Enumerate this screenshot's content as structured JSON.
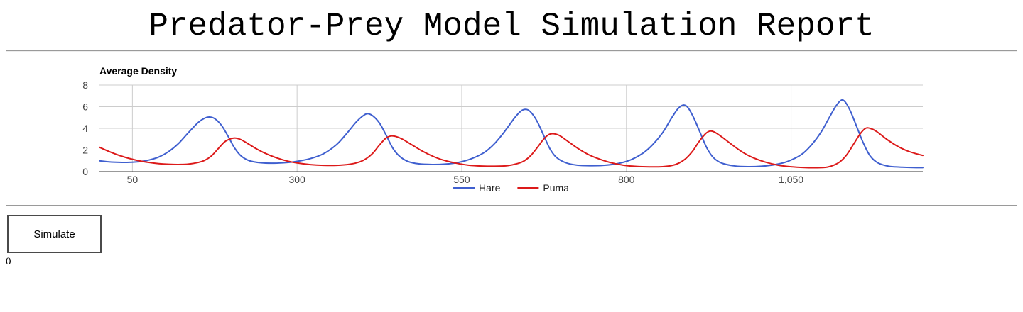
{
  "page": {
    "title": "Predator-Prey Model Simulation Report"
  },
  "controls": {
    "simulate_label": "Simulate",
    "counter_value": "0"
  },
  "chart_data": {
    "type": "line",
    "title": "Average Density",
    "xlabel": "",
    "ylabel": "",
    "xlim": [
      0,
      1250
    ],
    "ylim": [
      0,
      8
    ],
    "x_ticks": [
      50,
      300,
      550,
      800,
      1050
    ],
    "x_tick_labels": [
      "50",
      "300",
      "550",
      "800",
      "1,050"
    ],
    "y_ticks": [
      0,
      2,
      4,
      6,
      8
    ],
    "y_tick_labels": [
      "0",
      "2",
      "4",
      "6",
      "8"
    ],
    "grid": true,
    "legend_position": "bottom",
    "series": [
      {
        "name": "Hare",
        "color": "#3f5fcf",
        "points": [
          [
            0,
            1.0
          ],
          [
            15,
            0.9
          ],
          [
            30,
            0.86
          ],
          [
            45,
            0.86
          ],
          [
            60,
            0.92
          ],
          [
            75,
            1.07
          ],
          [
            90,
            1.35
          ],
          [
            105,
            1.85
          ],
          [
            120,
            2.6
          ],
          [
            135,
            3.6
          ],
          [
            150,
            4.55
          ],
          [
            160,
            4.95
          ],
          [
            167,
            5.05
          ],
          [
            175,
            4.9
          ],
          [
            185,
            4.3
          ],
          [
            195,
            3.3
          ],
          [
            205,
            2.2
          ],
          [
            215,
            1.45
          ],
          [
            228,
            1.0
          ],
          [
            245,
            0.82
          ],
          [
            265,
            0.78
          ],
          [
            285,
            0.84
          ],
          [
            300,
            0.95
          ],
          [
            320,
            1.2
          ],
          [
            340,
            1.65
          ],
          [
            360,
            2.5
          ],
          [
            375,
            3.5
          ],
          [
            390,
            4.6
          ],
          [
            400,
            5.15
          ],
          [
            407,
            5.35
          ],
          [
            415,
            5.15
          ],
          [
            425,
            4.5
          ],
          [
            435,
            3.4
          ],
          [
            445,
            2.2
          ],
          [
            455,
            1.45
          ],
          [
            468,
            0.95
          ],
          [
            485,
            0.72
          ],
          [
            505,
            0.66
          ],
          [
            525,
            0.7
          ],
          [
            545,
            0.85
          ],
          [
            565,
            1.2
          ],
          [
            585,
            1.8
          ],
          [
            600,
            2.6
          ],
          [
            615,
            3.7
          ],
          [
            630,
            4.95
          ],
          [
            640,
            5.6
          ],
          [
            647,
            5.75
          ],
          [
            654,
            5.55
          ],
          [
            664,
            4.7
          ],
          [
            674,
            3.4
          ],
          [
            684,
            2.1
          ],
          [
            694,
            1.3
          ],
          [
            708,
            0.82
          ],
          [
            725,
            0.6
          ],
          [
            745,
            0.55
          ],
          [
            765,
            0.58
          ],
          [
            785,
            0.72
          ],
          [
            805,
            1.05
          ],
          [
            825,
            1.7
          ],
          [
            840,
            2.5
          ],
          [
            855,
            3.6
          ],
          [
            868,
            4.9
          ],
          [
            878,
            5.8
          ],
          [
            886,
            6.15
          ],
          [
            893,
            5.95
          ],
          [
            902,
            5.0
          ],
          [
            912,
            3.6
          ],
          [
            922,
            2.2
          ],
          [
            932,
            1.3
          ],
          [
            945,
            0.78
          ],
          [
            965,
            0.52
          ],
          [
            985,
            0.46
          ],
          [
            1005,
            0.5
          ],
          [
            1025,
            0.64
          ],
          [
            1045,
            0.95
          ],
          [
            1065,
            1.55
          ],
          [
            1080,
            2.4
          ],
          [
            1095,
            3.6
          ],
          [
            1108,
            5.0
          ],
          [
            1118,
            6.05
          ],
          [
            1126,
            6.6
          ],
          [
            1132,
            6.45
          ],
          [
            1140,
            5.6
          ],
          [
            1150,
            4.1
          ],
          [
            1160,
            2.6
          ],
          [
            1170,
            1.45
          ],
          [
            1182,
            0.8
          ],
          [
            1198,
            0.5
          ],
          [
            1215,
            0.42
          ],
          [
            1235,
            0.38
          ],
          [
            1250,
            0.37
          ]
        ]
      },
      {
        "name": "Puma",
        "color": "#dc1a1a",
        "points": [
          [
            0,
            2.25
          ],
          [
            15,
            1.85
          ],
          [
            30,
            1.5
          ],
          [
            45,
            1.22
          ],
          [
            60,
            1.0
          ],
          [
            75,
            0.85
          ],
          [
            90,
            0.74
          ],
          [
            105,
            0.68
          ],
          [
            120,
            0.66
          ],
          [
            135,
            0.7
          ],
          [
            150,
            0.85
          ],
          [
            160,
            1.05
          ],
          [
            170,
            1.45
          ],
          [
            180,
            2.1
          ],
          [
            190,
            2.75
          ],
          [
            200,
            3.05
          ],
          [
            207,
            3.1
          ],
          [
            215,
            2.95
          ],
          [
            225,
            2.6
          ],
          [
            240,
            2.05
          ],
          [
            255,
            1.6
          ],
          [
            270,
            1.25
          ],
          [
            285,
            0.98
          ],
          [
            300,
            0.8
          ],
          [
            320,
            0.65
          ],
          [
            340,
            0.58
          ],
          [
            360,
            0.58
          ],
          [
            380,
            0.68
          ],
          [
            395,
            0.9
          ],
          [
            405,
            1.2
          ],
          [
            415,
            1.7
          ],
          [
            425,
            2.45
          ],
          [
            435,
            3.1
          ],
          [
            443,
            3.3
          ],
          [
            450,
            3.25
          ],
          [
            460,
            3.0
          ],
          [
            475,
            2.45
          ],
          [
            490,
            1.9
          ],
          [
            505,
            1.45
          ],
          [
            520,
            1.1
          ],
          [
            540,
            0.8
          ],
          [
            560,
            0.6
          ],
          [
            580,
            0.52
          ],
          [
            600,
            0.5
          ],
          [
            620,
            0.56
          ],
          [
            635,
            0.75
          ],
          [
            645,
            1.0
          ],
          [
            655,
            1.5
          ],
          [
            665,
            2.25
          ],
          [
            675,
            3.05
          ],
          [
            683,
            3.45
          ],
          [
            690,
            3.5
          ],
          [
            698,
            3.35
          ],
          [
            710,
            2.85
          ],
          [
            725,
            2.2
          ],
          [
            740,
            1.65
          ],
          [
            755,
            1.25
          ],
          [
            775,
            0.85
          ],
          [
            795,
            0.6
          ],
          [
            815,
            0.48
          ],
          [
            835,
            0.44
          ],
          [
            855,
            0.46
          ],
          [
            870,
            0.58
          ],
          [
            880,
            0.8
          ],
          [
            890,
            1.2
          ],
          [
            900,
            1.85
          ],
          [
            910,
            2.75
          ],
          [
            920,
            3.5
          ],
          [
            927,
            3.75
          ],
          [
            934,
            3.65
          ],
          [
            945,
            3.2
          ],
          [
            960,
            2.5
          ],
          [
            975,
            1.85
          ],
          [
            990,
            1.35
          ],
          [
            1010,
            0.9
          ],
          [
            1030,
            0.6
          ],
          [
            1050,
            0.45
          ],
          [
            1070,
            0.38
          ],
          [
            1090,
            0.36
          ],
          [
            1105,
            0.42
          ],
          [
            1115,
            0.6
          ],
          [
            1125,
            0.95
          ],
          [
            1135,
            1.6
          ],
          [
            1145,
            2.55
          ],
          [
            1155,
            3.5
          ],
          [
            1163,
            4.0
          ],
          [
            1170,
            4.0
          ],
          [
            1180,
            3.7
          ],
          [
            1195,
            3.0
          ],
          [
            1210,
            2.4
          ],
          [
            1225,
            1.95
          ],
          [
            1240,
            1.65
          ],
          [
            1250,
            1.5
          ]
        ]
      }
    ]
  }
}
